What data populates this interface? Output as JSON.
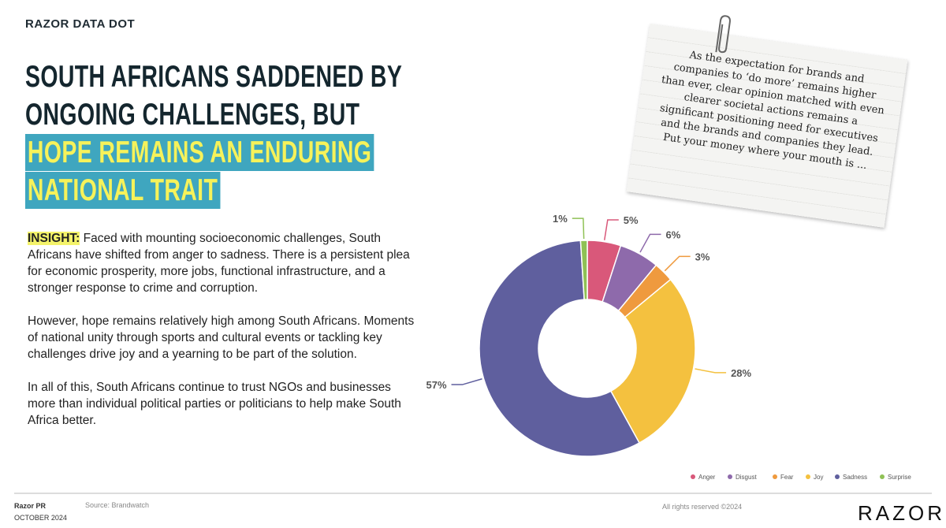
{
  "header": {
    "brand": "RAZOR DATA DOT",
    "title_plain": "SOUTH AFRICANS SADDENED BY ONGOING CHALLENGES, BUT",
    "title_highlight": "HOPE REMAINS AN ENDURING NATIONAL TRAIT"
  },
  "insight": {
    "label": "INSIGHT:",
    "paragraphs": [
      "Faced with mounting socioeconomic challenges, South Africans have shifted from anger to sadness. There is a persistent plea for economic prosperity, more jobs, functional infrastructure, and a stronger response to crime and corruption.",
      "However, hope remains relatively high among South Africans. Moments of national unity through sports and cultural events or tackling key challenges drive joy and a yearning to be part of the solution.",
      "In all of this, South Africans continue to trust NGOs and businesses more than individual political parties or politicians to help make South Africa better."
    ]
  },
  "note": "As the expectation for brands and companies to ‘do more’ remains higher than ever, clear opinion matched with even clearer societal actions remains a significant positioning need for executives and the brands and companies they lead. Put your money where your mouth is ...",
  "footer": {
    "company": "Razor PR",
    "date": "OCTOBER 2024",
    "source": "Source: Brandwatch",
    "rights": "All rights reserved ©2024",
    "logo": "RAZOR"
  },
  "chart_data": {
    "type": "donut",
    "categories": [
      "Anger",
      "Disgust",
      "Fear",
      "Joy",
      "Sadness",
      "Surprise"
    ],
    "values": [
      5,
      6,
      3,
      28,
      57,
      1
    ],
    "value_labels": [
      "5%",
      "6%",
      "3%",
      "28%",
      "57%",
      "1%"
    ],
    "colors": [
      "#d9587a",
      "#8e6aab",
      "#ef9a3e",
      "#f4c13f",
      "#5f5f9e",
      "#8fc155"
    ],
    "legend": "bottom-right"
  }
}
